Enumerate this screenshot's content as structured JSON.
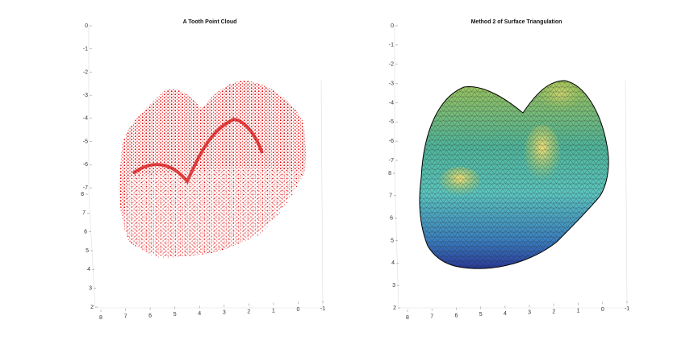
{
  "chart_data": [
    {
      "type": "scatter3d",
      "title": "A Tooth Point Cloud",
      "color": "#e00000",
      "xlim": [
        -1,
        8
      ],
      "xticks": [
        8,
        7,
        6,
        5,
        4,
        3,
        2,
        1,
        0,
        -1
      ],
      "ylim": [
        2,
        8
      ],
      "yticks": [
        8,
        7,
        6,
        5,
        4,
        3,
        2
      ],
      "zlim": [
        -7,
        0
      ],
      "zticks": [
        0,
        -1,
        -2,
        -3,
        -4,
        -5,
        -6,
        -7
      ]
    },
    {
      "type": "surface",
      "title": "Method 2 of Surface Triangulation",
      "xlim": [
        -1,
        8
      ],
      "xticks": [
        8,
        7,
        6,
        5,
        4,
        3,
        2,
        1,
        0,
        -1
      ],
      "ylim": [
        2,
        8
      ],
      "yticks": [
        8,
        7,
        6,
        5,
        4,
        3,
        2
      ],
      "zlim": [
        -7,
        0
      ],
      "zticks": [
        0,
        -1,
        -2,
        -3,
        -4,
        -5,
        -6,
        -7
      ]
    }
  ]
}
